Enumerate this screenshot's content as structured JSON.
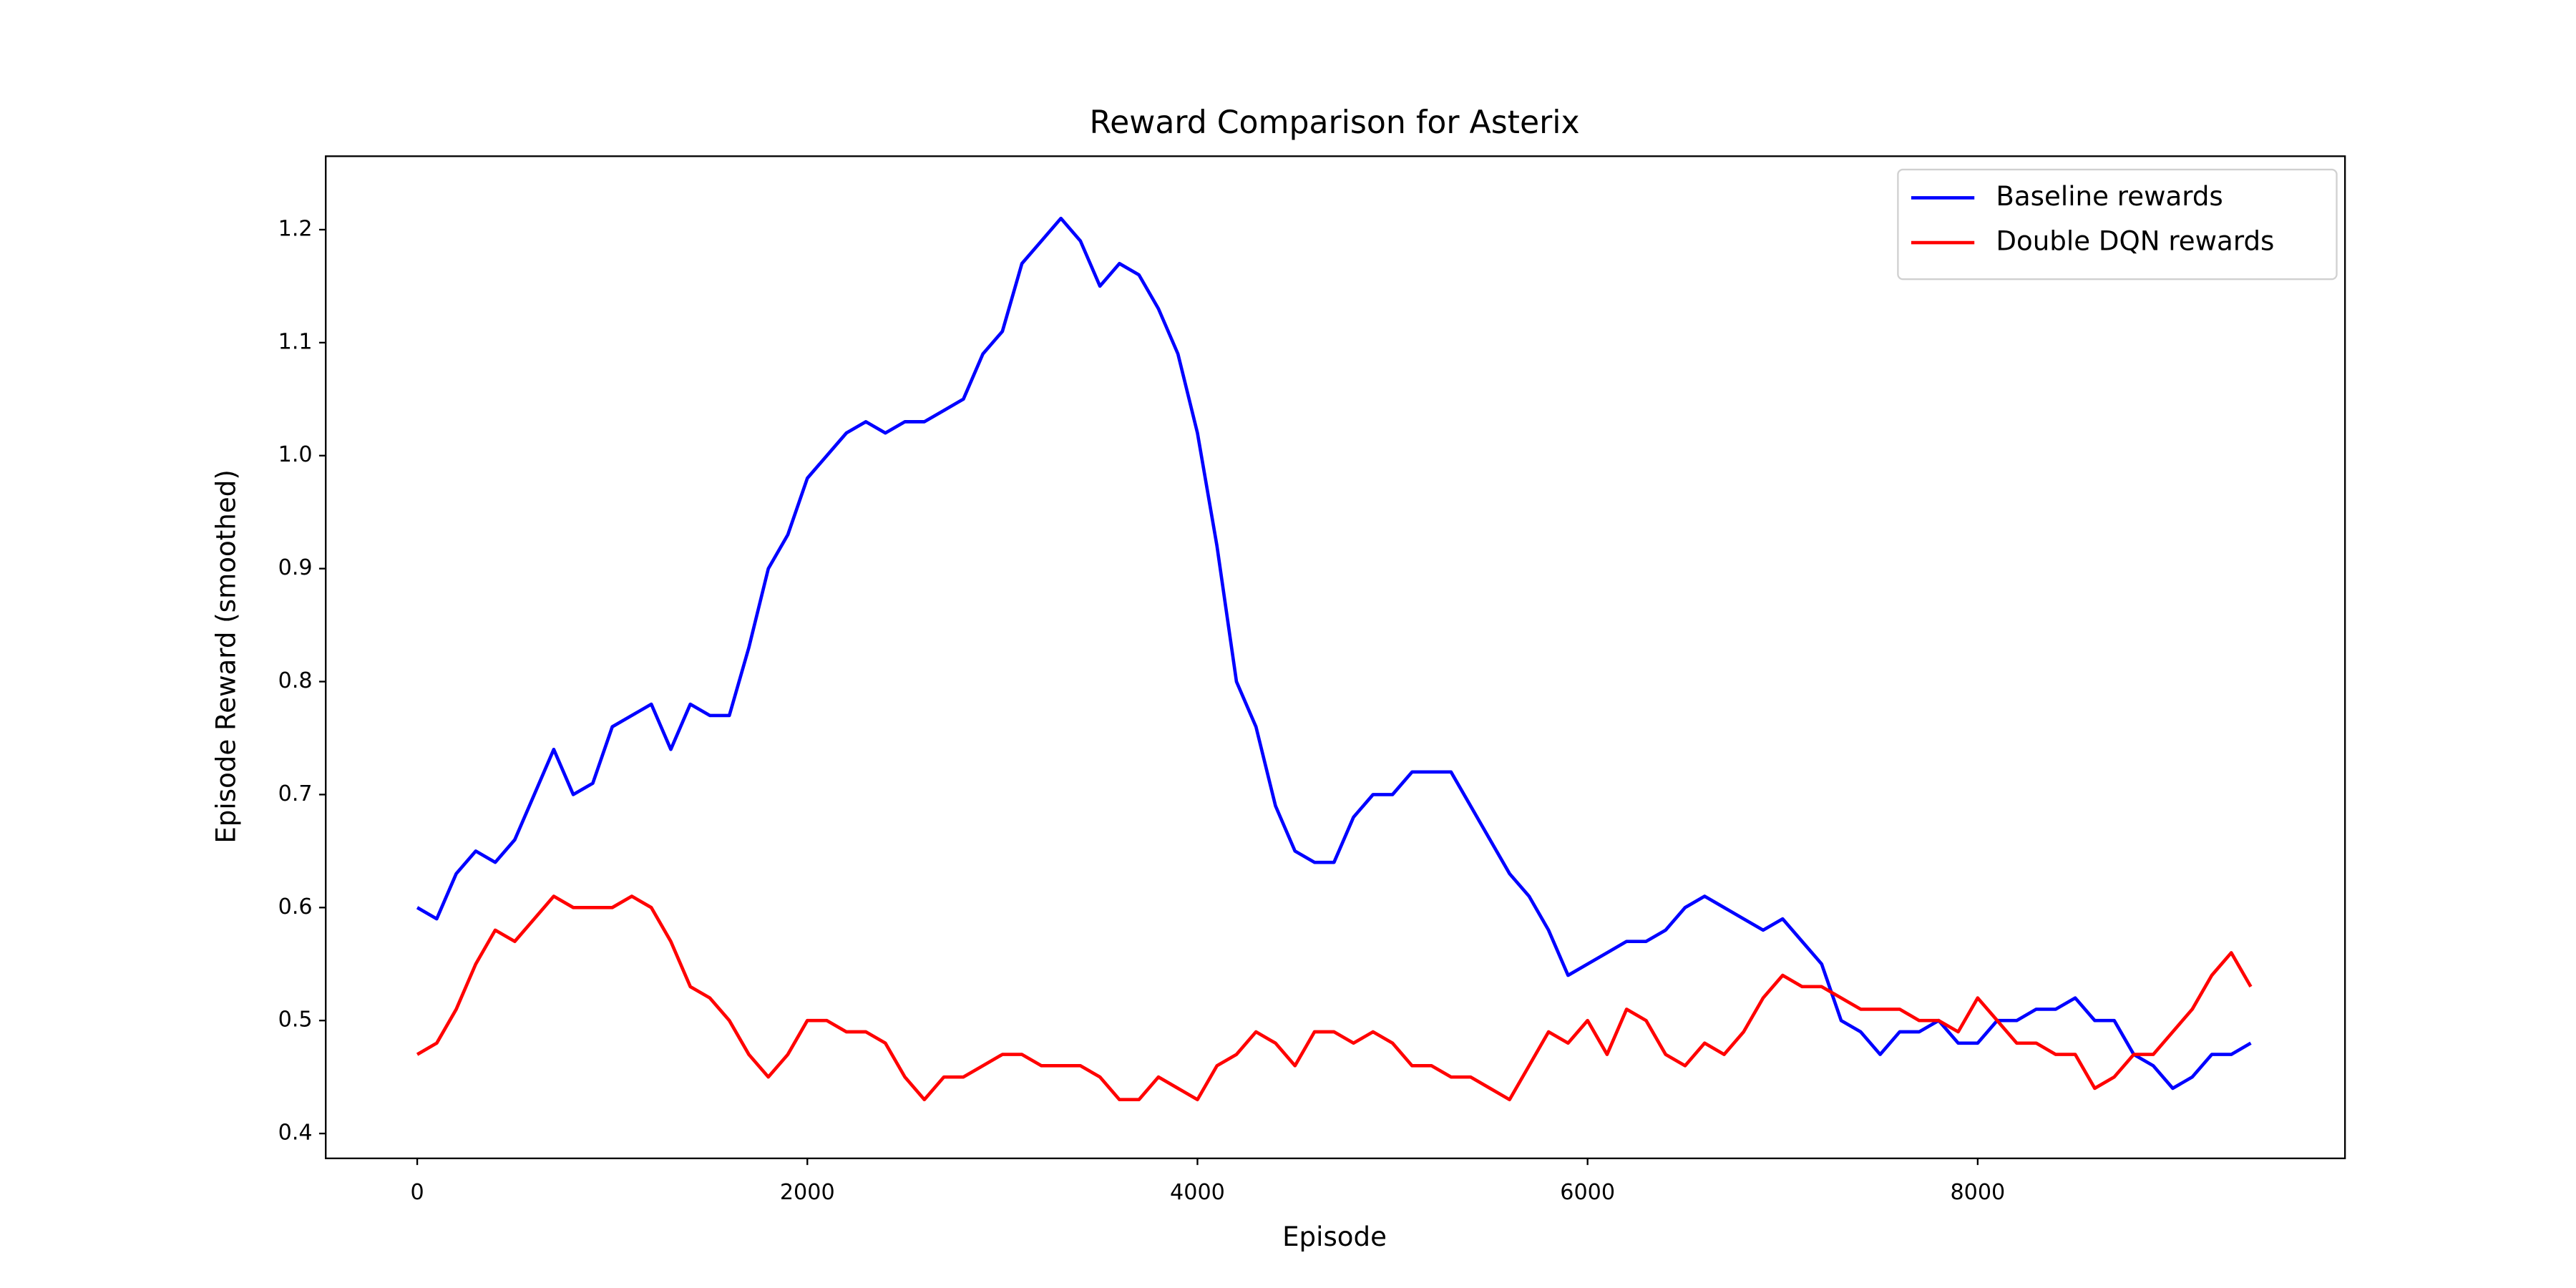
{
  "chart_data": {
    "type": "line",
    "title": "Reward Comparison for Asterix",
    "x_label": "Episode",
    "y_label": "Episode Reward (smoothed)",
    "x": [
      0,
      100,
      200,
      300,
      400,
      500,
      600,
      700,
      800,
      900,
      1000,
      1100,
      1200,
      1300,
      1400,
      1500,
      1600,
      1700,
      1800,
      1900,
      2000,
      2100,
      2200,
      2300,
      2400,
      2500,
      2600,
      2700,
      2800,
      2900,
      3000,
      3100,
      3200,
      3300,
      3400,
      3500,
      3600,
      3700,
      3800,
      3900,
      4000,
      4100,
      4200,
      4300,
      4400,
      4500,
      4600,
      4700,
      4800,
      4900,
      5000,
      5100,
      5200,
      5300,
      5400,
      5500,
      5600,
      5700,
      5800,
      5900,
      6000,
      6100,
      6200,
      6300,
      6400,
      6500,
      6600,
      6700,
      6800,
      6900,
      7000,
      7100,
      7200,
      7300,
      7400,
      7500,
      7600,
      7700,
      7800,
      7900,
      8000,
      8100,
      8200,
      8300,
      8400,
      8500,
      8600,
      8700,
      8800,
      8900,
      9000,
      9100,
      9200,
      9300,
      9400
    ],
    "series": [
      {
        "name": "Baseline rewards",
        "color": "#0000ff",
        "values": [
          0.6,
          0.59,
          0.63,
          0.65,
          0.64,
          0.66,
          0.7,
          0.74,
          0.7,
          0.71,
          0.76,
          0.77,
          0.78,
          0.74,
          0.78,
          0.77,
          0.77,
          0.83,
          0.9,
          0.93,
          0.98,
          1.0,
          1.02,
          1.03,
          1.02,
          1.03,
          1.03,
          1.04,
          1.05,
          1.09,
          1.11,
          1.17,
          1.19,
          1.21,
          1.19,
          1.15,
          1.17,
          1.16,
          1.13,
          1.09,
          1.02,
          0.92,
          0.8,
          0.76,
          0.69,
          0.65,
          0.64,
          0.64,
          0.68,
          0.7,
          0.7,
          0.72,
          0.72,
          0.72,
          0.69,
          0.66,
          0.63,
          0.61,
          0.58,
          0.54,
          0.55,
          0.56,
          0.57,
          0.57,
          0.58,
          0.6,
          0.61,
          0.6,
          0.59,
          0.58,
          0.59,
          0.57,
          0.55,
          0.5,
          0.49,
          0.47,
          0.49,
          0.49,
          0.5,
          0.48,
          0.48,
          0.5,
          0.5,
          0.51,
          0.51,
          0.52,
          0.5,
          0.5,
          0.47,
          0.46,
          0.44,
          0.45,
          0.47,
          0.47,
          0.48
        ]
      },
      {
        "name": "Double DQN rewards",
        "color": "#ff0000",
        "values": [
          0.47,
          0.48,
          0.51,
          0.55,
          0.58,
          0.57,
          0.59,
          0.61,
          0.6,
          0.6,
          0.6,
          0.61,
          0.6,
          0.57,
          0.53,
          0.52,
          0.5,
          0.47,
          0.45,
          0.47,
          0.5,
          0.5,
          0.49,
          0.49,
          0.48,
          0.45,
          0.43,
          0.45,
          0.45,
          0.46,
          0.47,
          0.47,
          0.46,
          0.46,
          0.46,
          0.45,
          0.43,
          0.43,
          0.45,
          0.44,
          0.43,
          0.46,
          0.47,
          0.49,
          0.48,
          0.46,
          0.49,
          0.49,
          0.48,
          0.49,
          0.48,
          0.46,
          0.46,
          0.45,
          0.45,
          0.44,
          0.43,
          0.46,
          0.49,
          0.48,
          0.5,
          0.47,
          0.51,
          0.5,
          0.47,
          0.46,
          0.48,
          0.47,
          0.49,
          0.52,
          0.54,
          0.53,
          0.53,
          0.52,
          0.51,
          0.51,
          0.51,
          0.5,
          0.5,
          0.49,
          0.52,
          0.5,
          0.48,
          0.48,
          0.47,
          0.47,
          0.44,
          0.45,
          0.47,
          0.47,
          0.49,
          0.51,
          0.54,
          0.56,
          0.53
        ]
      }
    ],
    "xlim": [
      -469,
      9883
    ],
    "xticks": [
      0,
      2000,
      4000,
      6000,
      8000
    ],
    "ylim": [
      0.378,
      1.265
    ],
    "yticks": [
      0.4,
      0.5,
      0.6,
      0.7,
      0.8,
      0.9,
      {
        "value": 1.0,
        "label": "1.0"
      },
      1.1,
      1.2
    ],
    "legend": "upper right",
    "grid": false
  }
}
